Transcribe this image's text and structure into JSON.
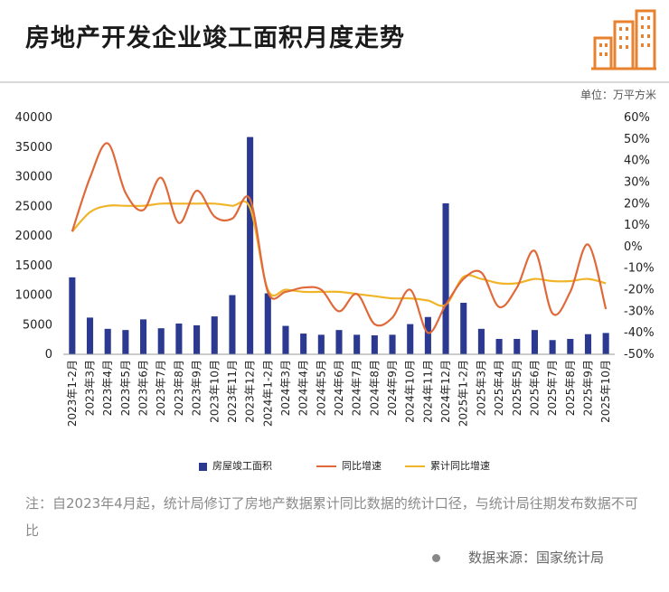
{
  "title": "房地产开发企业竣工面积月度走势",
  "unit": "单位：万平方米",
  "note": "注：自2023年4月起，统计局修订了房地产数据累计同比数据的统计口径，与统计局往期发布数据不可比",
  "source": "数据来源：国家统计局",
  "colors": {
    "bar": "#2b3990",
    "yoy": "#e0693a",
    "cum": "#f0b429",
    "logo": "#e8822f"
  },
  "chart_data": {
    "type": "bar+line",
    "categories": [
      "2023年1-2月",
      "2023年3月",
      "2023年4月",
      "2023年5月",
      "2023年6月",
      "2023年7月",
      "2023年8月",
      "2023年9月",
      "2023年10月",
      "2023年11月",
      "2023年12月",
      "2024年1-2月",
      "2024年3月",
      "2024年4月",
      "2024年5月",
      "2024年6月",
      "2024年7月",
      "2024年8月",
      "2024年9月",
      "2024年10月",
      "2024年11月",
      "2024年12月",
      "2025年1-2月",
      "2025年3月",
      "2025年4月",
      "2025年5月",
      "2025年6月",
      "2025年7月",
      "2025年8月",
      "2025年9月",
      "2025年10月"
    ],
    "left_axis": {
      "ticks": [
        0,
        5000,
        10000,
        15000,
        20000,
        25000,
        30000,
        35000,
        40000
      ],
      "ylim": [
        0,
        40000
      ]
    },
    "right_axis": {
      "ticks": [
        "-50%",
        "-40%",
        "-30%",
        "-20%",
        "-10%",
        "0%",
        "10%",
        "20%",
        "30%",
        "40%",
        "50%",
        "60%"
      ],
      "ylim": [
        -50,
        60
      ]
    },
    "series": [
      {
        "name": "房屋竣工面积",
        "type": "bar",
        "axis": "left",
        "values": [
          13000,
          6200,
          4300,
          4100,
          5900,
          4400,
          5200,
          4900,
          6400,
          10000,
          36700,
          10300,
          4800,
          3500,
          3300,
          4100,
          3300,
          3200,
          3300,
          5100,
          6300,
          25500,
          8700,
          4300,
          2600,
          2600,
          4100,
          2400,
          2600,
          3400,
          3600
        ]
      },
      {
        "name": "同比增速",
        "type": "line",
        "axis": "right",
        "values": [
          7,
          32,
          48,
          25,
          17,
          32,
          11,
          26,
          14,
          13,
          22,
          -21,
          -21,
          -19,
          -20,
          -30,
          -22,
          -36,
          -33,
          -20,
          -40,
          -27,
          -15,
          -12,
          -28,
          -19,
          -2,
          -31,
          -21,
          1,
          -29
        ]
      },
      {
        "name": "累计同比增速",
        "type": "line",
        "axis": "right",
        "values": [
          7,
          16,
          19,
          19,
          19,
          20,
          20,
          20,
          20,
          19,
          18,
          -20,
          -20,
          -21,
          -21,
          -21,
          -22,
          -23,
          -24,
          -24,
          -25,
          -27,
          -14,
          -15,
          -17,
          -17,
          -15,
          -16,
          -16,
          -15,
          -17
        ]
      }
    ],
    "legend": [
      "房屋竣工面积",
      "同比增速",
      "累计同比增速"
    ],
    "legend_position": "bottom"
  }
}
